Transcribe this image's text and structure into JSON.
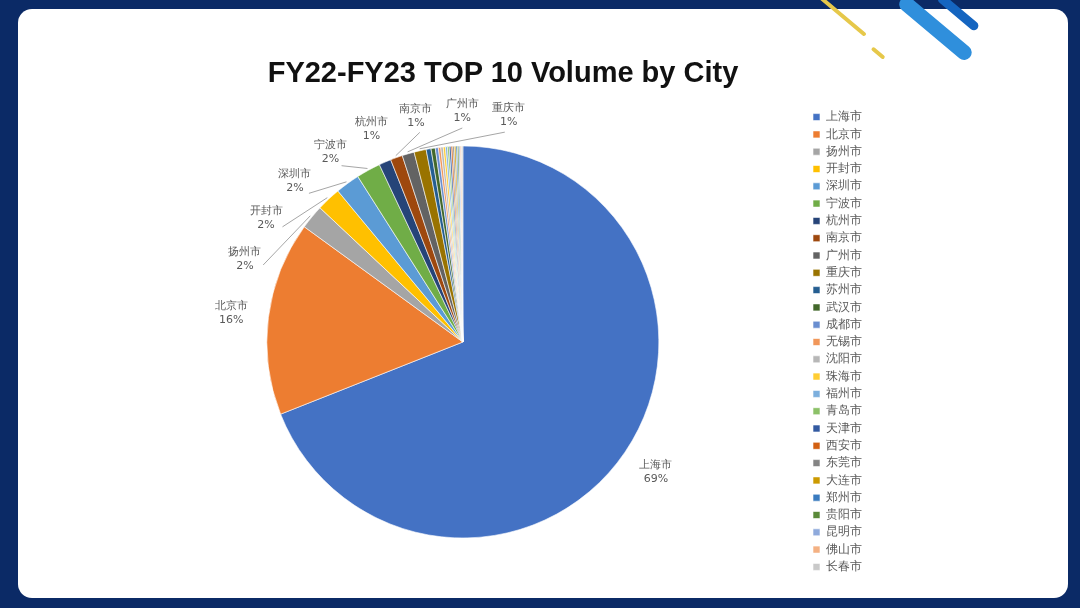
{
  "chart_data": {
    "type": "pie",
    "title": "FY22-FY23 TOP 10 Volume by City",
    "categories": [
      "上海市",
      "北京市",
      "扬州市",
      "开封市",
      "深圳市",
      "宁波市",
      "杭州市",
      "南京市",
      "广州市",
      "重庆市",
      "苏州市",
      "武汉市",
      "成都市",
      "无锡市",
      "沈阳市",
      "珠海市",
      "福州市",
      "青岛市",
      "天津市",
      "西安市",
      "东莞市",
      "大连市",
      "郑州市",
      "贵阳市",
      "昆明市",
      "佛山市",
      "长春市"
    ],
    "values": [
      69,
      16,
      2,
      2,
      2,
      2,
      1,
      1,
      1,
      1,
      0.4,
      0.35,
      0.25,
      0.2,
      0.2,
      0.18,
      0.16,
      0.15,
      0.15,
      0.14,
      0.13,
      0.13,
      0.12,
      0.12,
      0.11,
      0.11,
      0.1
    ],
    "colors": [
      "#4472c4",
      "#ed7d31",
      "#a5a5a5",
      "#ffc000",
      "#5b9bd5",
      "#70ad47",
      "#264478",
      "#9e480e",
      "#636363",
      "#997300",
      "#255e91",
      "#43682b",
      "#698ed0",
      "#f1975a",
      "#b7b7b7",
      "#ffcd33",
      "#7cafdd",
      "#8cc168",
      "#335aa1",
      "#d26012",
      "#848484",
      "#cc9a00",
      "#3a7bbf",
      "#5a8a39",
      "#8faadc",
      "#f4b183",
      "#c9c9c9"
    ],
    "value_labels": [
      "69%",
      "16%",
      "2%",
      "2%",
      "2%",
      "2%",
      "1%",
      "1%",
      "1%",
      "1%",
      null,
      null,
      null,
      null,
      null,
      null,
      null,
      null,
      null,
      null,
      null,
      null,
      null,
      null,
      null,
      null,
      null
    ],
    "legend": "right"
  }
}
